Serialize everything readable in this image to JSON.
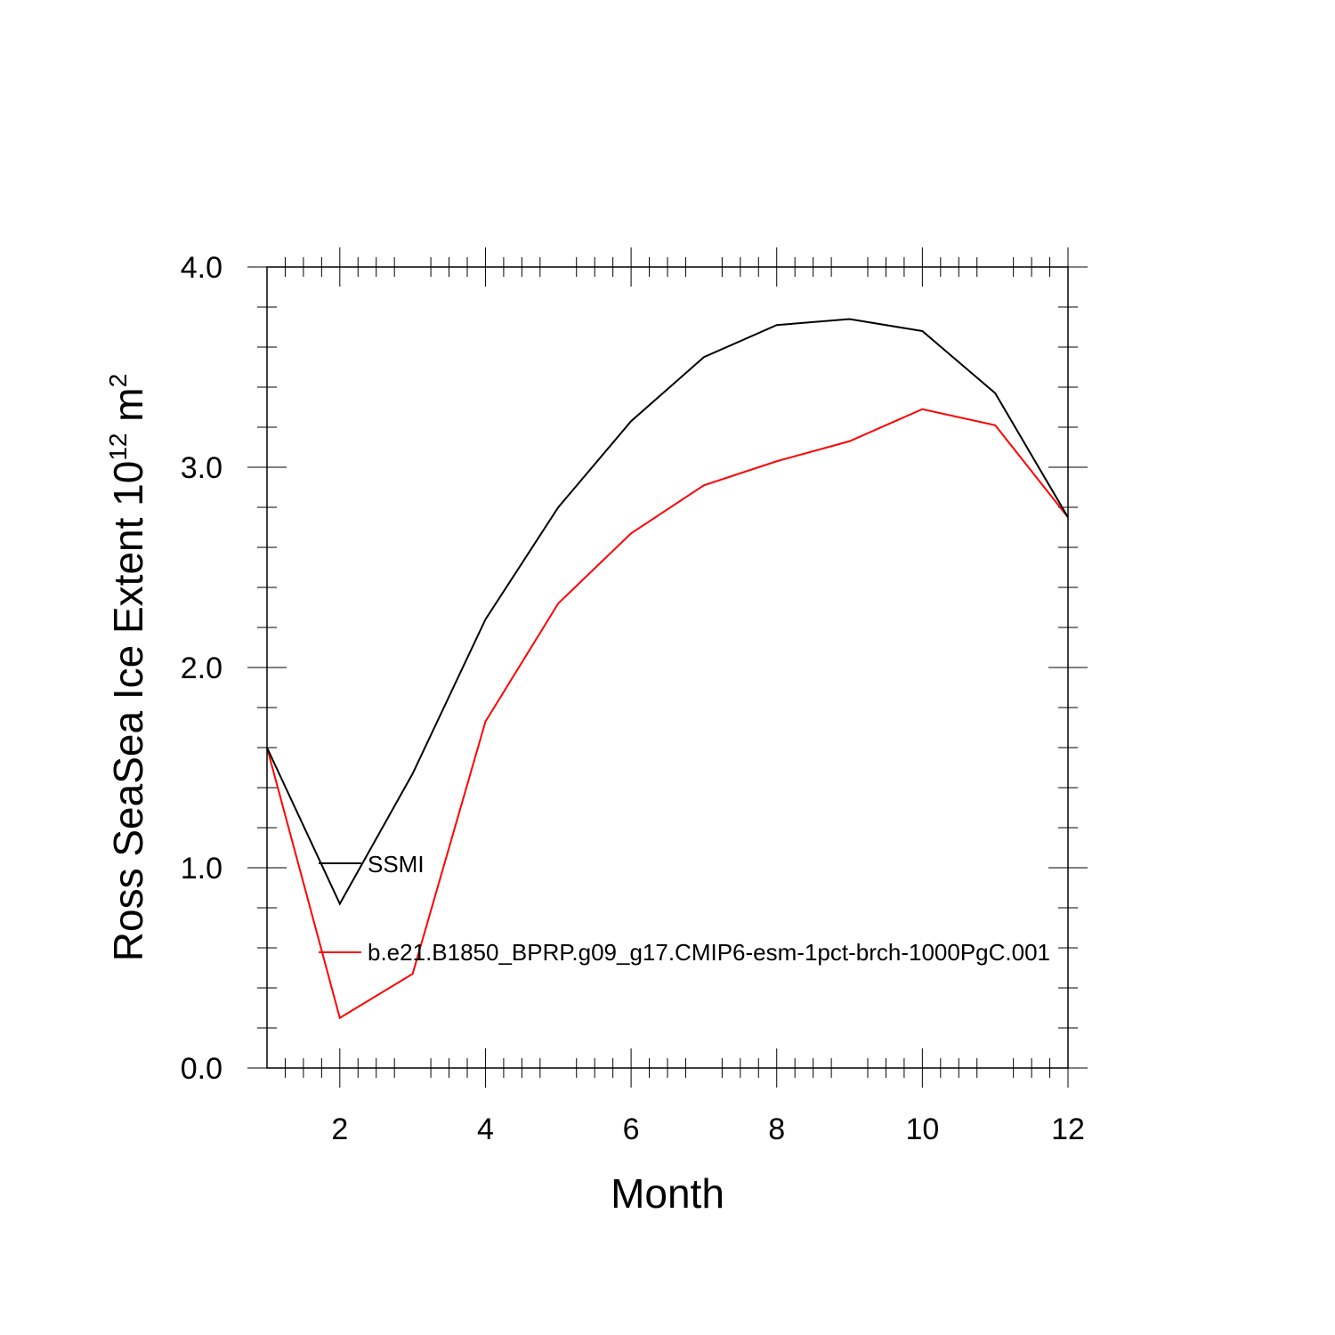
{
  "chart_data": {
    "type": "line",
    "x": [
      1,
      2,
      3,
      4,
      5,
      6,
      7,
      8,
      9,
      10,
      11,
      12
    ],
    "xlabel": "Month",
    "ylabel_main": "Ross SeaSea Ice Extent 10",
    "ylabel_exp": "12",
    "ylabel_unit": " m",
    "ylabel_unit_exp": "2",
    "xlim": [
      1,
      12
    ],
    "ylim": [
      0.0,
      4.0
    ],
    "xticks": [
      2,
      4,
      6,
      8,
      10,
      12
    ],
    "xtick_labels": [
      "2",
      "4",
      "6",
      "8",
      "10",
      "12"
    ],
    "yticks": [
      0.0,
      1.0,
      2.0,
      3.0,
      4.0
    ],
    "ytick_labels": [
      "0.0",
      "1.0",
      "2.0",
      "3.0",
      "4.0"
    ],
    "grid": false,
    "legend_position": "inside-left",
    "series": [
      {
        "name": "SSMI",
        "color": "#000000",
        "values": [
          1.6,
          0.82,
          1.47,
          2.24,
          2.8,
          3.23,
          3.55,
          3.71,
          3.74,
          3.68,
          3.37,
          2.75
        ]
      },
      {
        "name": "b.e21.B1850_BPRP.g09_g17.CMIP6-esm-1pct-brch-1000PgC.001",
        "color": "#ff0000",
        "values": [
          1.6,
          0.25,
          0.47,
          1.73,
          2.32,
          2.67,
          2.91,
          3.03,
          3.13,
          3.29,
          3.21,
          2.75
        ]
      }
    ]
  }
}
